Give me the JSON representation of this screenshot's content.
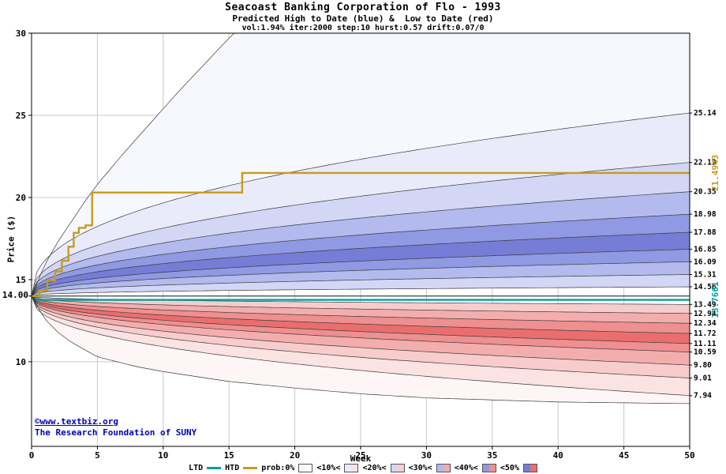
{
  "title": {
    "line1": "Seacoast Banking Corporation of Flo - 1993",
    "line2": "Predicted High to Date (blue) &  Low to Date (red)",
    "line3": "vol:1.94% iter:2000 step:10 hurst:0.57 drift:0.07/0"
  },
  "watermark": {
    "line1": "©www.textbiz.org",
    "line2": "The Research Foundation of SUNY"
  },
  "legend": {
    "ltd_label": "LTD",
    "htd_label": "HTD",
    "prob_items": [
      {
        "label": "prob:0%",
        "level": 0
      },
      {
        "label": "<10%<",
        "level": 1
      },
      {
        "label": "<20%<",
        "level": 2
      },
      {
        "label": "<30%<",
        "level": 3
      },
      {
        "label": "<40%<",
        "level": 4
      },
      {
        "label": "<50%",
        "level": 5
      }
    ]
  },
  "chart_data": {
    "type": "area",
    "title": "Seacoast Banking Corporation of Flo - 1993",
    "subtitle": "Predicted High to Date (blue) & Low to Date (red)",
    "params": {
      "vol": "1.94%",
      "iter": "2000",
      "step": "10",
      "hurst": "0.57",
      "drift": "0.07/0"
    },
    "xlabel": "Week",
    "ylabel": "Price ($)",
    "xlim": [
      0,
      50
    ],
    "ylim": [
      4.85,
      30
    ],
    "x_ticks": [
      0,
      5,
      10,
      15,
      20,
      25,
      30,
      35,
      40,
      45,
      50
    ],
    "y_ticks": [
      10,
      15,
      20,
      25,
      30
    ],
    "start_price": 14.0,
    "start_price_label": "14.00",
    "curve_exponent": 0.42,
    "high_quantile_finals": [
      14.56,
      15.31,
      16.09,
      16.85,
      17.88,
      18.98,
      20.35,
      22.13,
      25.14
    ],
    "low_quantile_finals": [
      13.49,
      12.94,
      12.34,
      11.72,
      11.11,
      10.59,
      9.8,
      9.01,
      7.94
    ],
    "high_outer_envelope": [
      [
        0,
        14
      ],
      [
        1,
        15.9
      ],
      [
        2,
        17.3
      ],
      [
        3,
        18.5
      ],
      [
        4,
        19.7
      ],
      [
        5,
        20.8
      ],
      [
        7,
        22.7
      ],
      [
        9,
        24.5
      ],
      [
        11,
        26.3
      ],
      [
        13,
        28.0
      ],
      [
        15,
        29.7
      ],
      [
        17,
        31.2
      ],
      [
        50,
        31.2
      ]
    ],
    "low_outer_envelope": [
      [
        0,
        14
      ],
      [
        1,
        12.6
      ],
      [
        2,
        11.8
      ],
      [
        3,
        11.2
      ],
      [
        5,
        10.3
      ],
      [
        8,
        9.7
      ],
      [
        10,
        9.4
      ],
      [
        15,
        8.8
      ],
      [
        20,
        8.4
      ],
      [
        25,
        8.05
      ],
      [
        30,
        7.8
      ],
      [
        40,
        7.55
      ],
      [
        50,
        7.45
      ]
    ],
    "band_levels_inner_to_outer": [
      2,
      3,
      4,
      5,
      4,
      3,
      2,
      1,
      0
    ],
    "band_colors_high": [
      "#f7f7fe",
      "#e9ebfb",
      "#d3d7f5",
      "#b3baee",
      "#9099e3",
      "#767dd6"
    ],
    "band_colors_low": [
      "#fef6f6",
      "#fbe3e3",
      "#f8cccc",
      "#f4adad",
      "#ef8f8f",
      "#ea6e6e"
    ],
    "boundary_line_color": "#3a3a3a",
    "grid_color": "#c8c8c8",
    "center_line_value": 14.0,
    "htd": {
      "label": "HTD",
      "color": "#c89b18",
      "final_value": 21.4943,
      "final_label": "21.4943",
      "steps": [
        [
          0,
          14.0
        ],
        [
          0.6,
          14.35
        ],
        [
          1.2,
          14.95
        ],
        [
          1.8,
          15.5
        ],
        [
          2.3,
          16.15
        ],
        [
          2.8,
          17.0
        ],
        [
          3.2,
          17.85
        ],
        [
          3.6,
          18.15
        ],
        [
          4.1,
          18.3
        ],
        [
          4.6,
          20.3
        ],
        [
          15.6,
          20.3
        ],
        [
          16.0,
          21.4943
        ],
        [
          50,
          21.4943
        ]
      ]
    },
    "ltd": {
      "label": "LTD",
      "color": "#00a0a0",
      "final_value": 13.7661,
      "final_label": "13.7661",
      "steps": [
        [
          0,
          14.0
        ],
        [
          0.4,
          13.7661
        ],
        [
          50,
          13.7661
        ]
      ]
    }
  }
}
